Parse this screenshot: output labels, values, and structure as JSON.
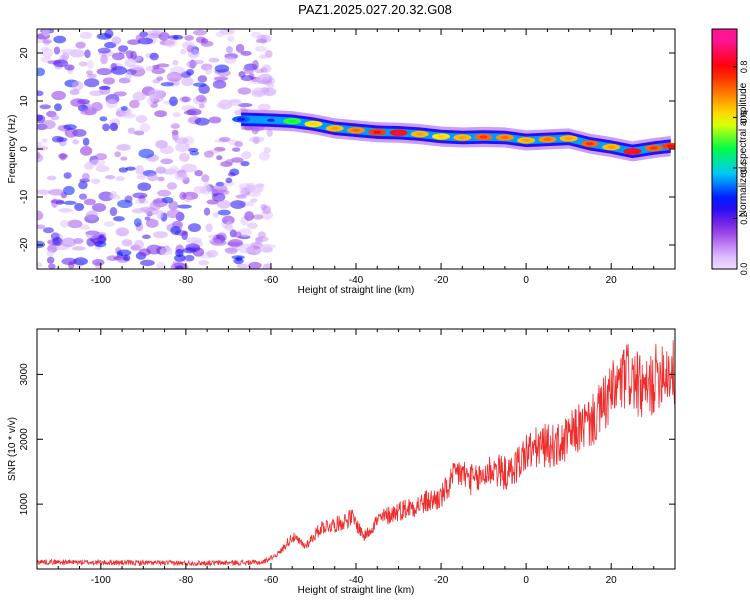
{
  "title": "PAZ1.2025.027.20.32.G08",
  "colors": {
    "snr_line": "#ef2b2b",
    "colormap": [
      "#ffffff",
      "#d9b3ff",
      "#8a2be2",
      "#0000ff",
      "#00c8ff",
      "#00ff40",
      "#ffff00",
      "#ff8000",
      "#ff0000",
      "#ff1493"
    ]
  },
  "chart_data": [
    {
      "type": "heatmap",
      "xlabel": "Height of straight line (km)",
      "ylabel": "Frequency (Hz)",
      "xlim": [
        -115,
        35
      ],
      "ylim": [
        -25,
        25
      ],
      "x_ticks": [
        -100,
        -80,
        -60,
        -40,
        -20,
        0,
        20
      ],
      "y_ticks": [
        -20,
        -10,
        0,
        10,
        20
      ],
      "colorbar": {
        "label": "Normalized spectral amplitude",
        "range": [
          0,
          0.95
        ],
        "ticks": [
          0.0,
          0.2,
          0.4,
          0.6,
          0.8
        ]
      },
      "noise_region_x": [
        -115,
        -60
      ],
      "ridge": {
        "x": [
          -67,
          -60,
          -55,
          -50,
          -45,
          -40,
          -35,
          -30,
          -25,
          -20,
          -15,
          -10,
          -5,
          0,
          5,
          10,
          15,
          20,
          25,
          30,
          34
        ],
        "y": [
          6.2,
          6.0,
          5.8,
          5.2,
          4.3,
          3.9,
          3.5,
          3.4,
          3.1,
          2.6,
          2.4,
          2.5,
          2.4,
          1.8,
          2.0,
          2.2,
          1.1,
          0.4,
          -0.5,
          0.2,
          0.6
        ],
        "amplitude": [
          0.25,
          0.3,
          0.5,
          0.65,
          0.7,
          0.75,
          0.85,
          0.9,
          0.7,
          0.65,
          0.7,
          0.8,
          0.75,
          0.7,
          0.75,
          0.7,
          0.8,
          0.7,
          0.9,
          0.8,
          0.85
        ]
      }
    },
    {
      "type": "line",
      "xlabel": "Height of straight line (km)",
      "ylabel": "SNR (10 * v/v)",
      "xlim": [
        -115,
        35
      ],
      "ylim": [
        0,
        3700
      ],
      "x_ticks": [
        -100,
        -80,
        -60,
        -40,
        -20,
        0,
        20
      ],
      "y_ticks": [
        1000,
        2000,
        3000
      ],
      "series": [
        {
          "x": [
            -115,
            -100,
            -80,
            -62,
            -58,
            -55,
            -52,
            -48,
            -44,
            -41,
            -38,
            -35,
            -30,
            -25,
            -20,
            -16,
            -12,
            -8,
            -4,
            0,
            4,
            8,
            12,
            16,
            20,
            24,
            28,
            32,
            35
          ],
          "values": [
            110,
            100,
            90,
            100,
            250,
            500,
            350,
            650,
            700,
            800,
            500,
            750,
            900,
            1000,
            1100,
            1500,
            1350,
            1550,
            1450,
            1800,
            1900,
            1900,
            2150,
            2300,
            2700,
            3000,
            2700,
            3100,
            3000
          ]
        }
      ]
    }
  ]
}
